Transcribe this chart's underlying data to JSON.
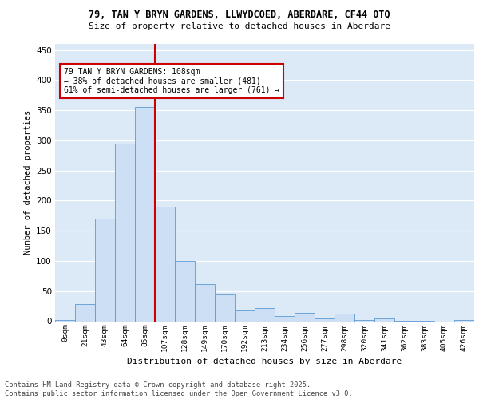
{
  "title1": "79, TAN Y BRYN GARDENS, LLWYDCOED, ABERDARE, CF44 0TQ",
  "title2": "Size of property relative to detached houses in Aberdare",
  "xlabel": "Distribution of detached houses by size in Aberdare",
  "ylabel": "Number of detached properties",
  "bin_labels": [
    "0sqm",
    "21sqm",
    "43sqm",
    "64sqm",
    "85sqm",
    "107sqm",
    "128sqm",
    "149sqm",
    "170sqm",
    "192sqm",
    "213sqm",
    "234sqm",
    "256sqm",
    "277sqm",
    "298sqm",
    "320sqm",
    "341sqm",
    "362sqm",
    "383sqm",
    "405sqm",
    "426sqm"
  ],
  "bar_values": [
    2,
    28,
    170,
    295,
    355,
    190,
    100,
    62,
    45,
    18,
    22,
    8,
    14,
    5,
    12,
    2,
    5,
    1,
    1,
    0,
    2
  ],
  "bar_color": "#ccdff5",
  "bar_edge_color": "#5b9bd5",
  "vline_x_index": 5,
  "vline_color": "#cc0000",
  "annotation_text": "79 TAN Y BRYN GARDENS: 108sqm\n← 38% of detached houses are smaller (481)\n61% of semi-detached houses are larger (761) →",
  "annotation_box_color": "#cc0000",
  "ylim": [
    0,
    460
  ],
  "yticks": [
    0,
    50,
    100,
    150,
    200,
    250,
    300,
    350,
    400,
    450
  ],
  "footer_text": "Contains HM Land Registry data © Crown copyright and database right 2025.\nContains public sector information licensed under the Open Government Licence v3.0.",
  "bg_color": "#ffffff",
  "plot_bg_color": "#dce9f7"
}
